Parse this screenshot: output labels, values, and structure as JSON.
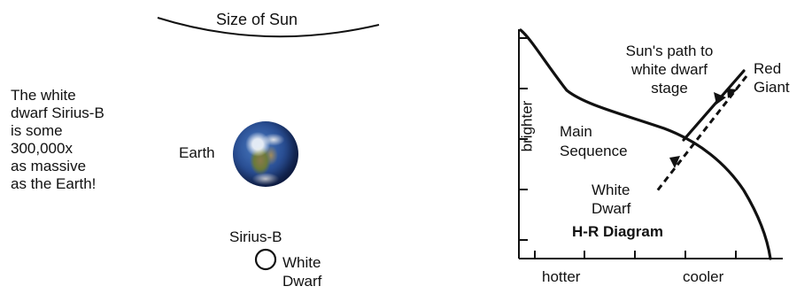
{
  "labels": {
    "size_of_sun": "Size of Sun",
    "fact": "The white\ndwarf Sirius-B\nis some\n300,000x\nas massive\nas the Earth!",
    "earth": "Earth",
    "sirius_b": "Sirius-B",
    "white_dwarf_small": "White\nDwarf",
    "suns_path": "Sun's path to\nwhite dwarf\nstage",
    "red_giant": "Red\nGiant",
    "main_sequence": "Main\nSequence",
    "white_dwarf_hr": "White\nDwarf",
    "hr_title": "H-R Diagram",
    "hotter": "hotter",
    "cooler": "cooler",
    "brighter": "brighter"
  },
  "colors": {
    "ink": "#111111",
    "earth_ocean": "#2a4f95"
  },
  "icons": {
    "earth": "earth-globe-icon",
    "white_dwarf": "small-circle-icon"
  }
}
